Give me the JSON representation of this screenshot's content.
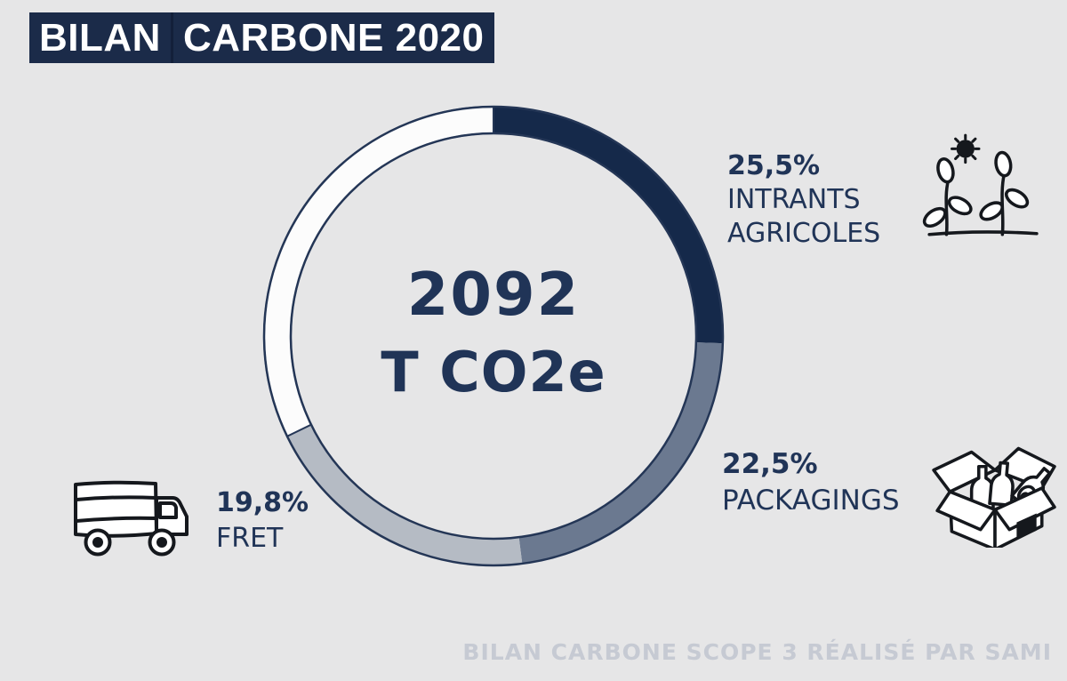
{
  "header": {
    "title_part1": "BILAN",
    "title_part2": "CARBONE 2020"
  },
  "footer": {
    "credit": "BILAN CARBONE SCOPE 3 RÉALISÉ PAR SAMI"
  },
  "colors": {
    "background": "#e6e6e7",
    "title_bg": "#1b2b49",
    "title_text": "#ffffff",
    "outline": "#243656",
    "text_navy": "#203457",
    "footer_gray": "#c6cad3",
    "icon_ink": "#15181d"
  },
  "chart_data": {
    "type": "pie",
    "variant": "donut",
    "title": "BILAN CARBONE 2020",
    "center_value": "2092",
    "center_unit": "T CO2e",
    "start_angle_deg": 0,
    "direction": "clockwise",
    "legend_position": "callouts around donut",
    "segments": [
      {
        "label": "INTRANTS AGRICOLES",
        "label_lines": [
          "INTRANTS",
          "AGRICOLES"
        ],
        "value_pct": 25.5,
        "value_label": "25,5%",
        "color": "#15294a",
        "remainder": false
      },
      {
        "label": "PACKAGINGS",
        "label_lines": [
          "PACKAGINGS"
        ],
        "value_pct": 22.5,
        "value_label": "22,5%",
        "color": "#6b7990",
        "remainder": false
      },
      {
        "label": "FRET",
        "label_lines": [
          "FRET"
        ],
        "value_pct": 19.8,
        "value_label": "19,8%",
        "color": "#b5bbc4",
        "remainder": false
      },
      {
        "label": "",
        "label_lines": [],
        "value_pct": 32.2,
        "value_label": "",
        "color": "#fcfcfc",
        "remainder": true
      }
    ]
  },
  "icons": {
    "agriculture": "plants-sun-icon",
    "packaging": "box-bottles-icon",
    "freight": "truck-icon"
  }
}
